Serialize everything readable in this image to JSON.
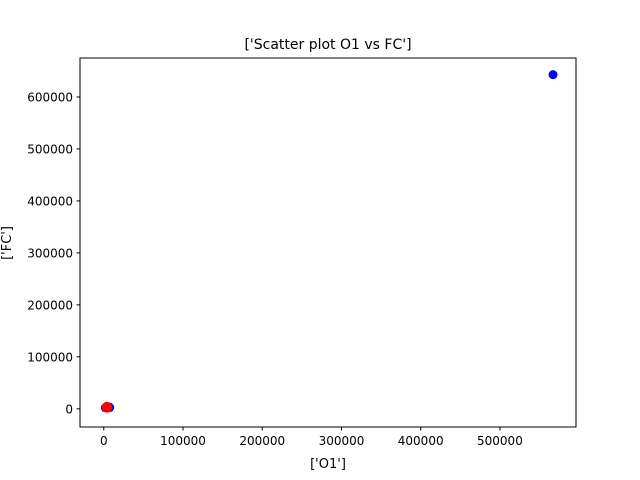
{
  "chart_data": {
    "type": "scatter",
    "title": "['Scatter plot O1 vs FC']",
    "xlabel": "['O1']",
    "ylabel": "['FC']",
    "xlim": [
      -30000,
      596000
    ],
    "ylim": [
      -35000,
      675000
    ],
    "xticks": [
      0,
      100000,
      200000,
      300000,
      400000,
      500000
    ],
    "yticks": [
      0,
      100000,
      200000,
      300000,
      400000,
      500000,
      600000
    ],
    "grid": false,
    "series": [
      {
        "color": "#0000ff",
        "points": [
          {
            "x": 567000,
            "y": 643000
          },
          {
            "x": 2000,
            "y": 2000
          },
          {
            "x": 3500,
            "y": 3000
          },
          {
            "x": 5000,
            "y": 4000
          },
          {
            "x": 6500,
            "y": 3500
          },
          {
            "x": 7500,
            "y": 2500
          }
        ]
      },
      {
        "color": "#ff0000",
        "points": [
          {
            "x": 3000,
            "y": 3000
          },
          {
            "x": 4000,
            "y": 5000
          },
          {
            "x": 5000,
            "y": 2000
          },
          {
            "x": 3500,
            "y": 1500
          },
          {
            "x": 4500,
            "y": 3500
          }
        ]
      }
    ]
  }
}
